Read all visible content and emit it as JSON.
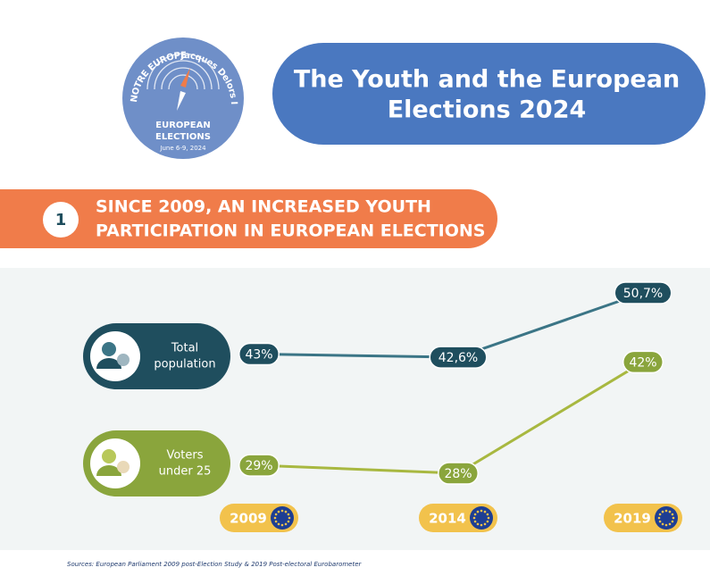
{
  "logo": {
    "top_left": "NOTRE EUROPE",
    "top_right": "Jacques Delors Institute",
    "line1": "EUROPEAN",
    "line2": "ELECTIONS",
    "dates": "June 6-9, 2024"
  },
  "header": {
    "title_line1": "The Youth and the European",
    "title_line2": "Elections 2024"
  },
  "section": {
    "number": "1",
    "heading_line1": "SINCE 2009, AN INCREASED YOUTH",
    "heading_line2": "PARTICIPATION IN EUROPEAN ELECTIONS"
  },
  "chart_data": {
    "type": "line",
    "categories": [
      "2009",
      "2014",
      "2019"
    ],
    "series": [
      {
        "name": [
          "Total",
          "population"
        ],
        "color": "#3b7586",
        "label_color": "#1f4e5e",
        "values": [
          43,
          42.6,
          50.7
        ],
        "value_labels": [
          "43%",
          "42,6%",
          "50,7%"
        ]
      },
      {
        "name": [
          "Voters",
          "under 25"
        ],
        "color": "#a8b840",
        "label_color": "#8aa53c",
        "values": [
          29,
          28,
          42
        ],
        "value_labels": [
          "29%",
          "28%",
          "42%"
        ]
      }
    ]
  },
  "source": "Sources: European Parliament 2009 post-Election Study & 2019 Post-electoral Eurobarometer"
}
